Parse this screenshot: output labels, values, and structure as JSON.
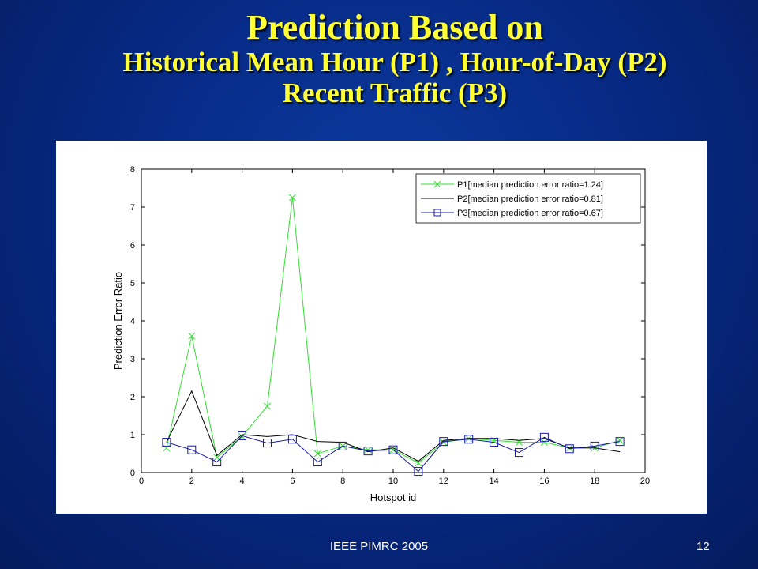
{
  "slide": {
    "title_line1": "Prediction Based on",
    "title_line2": "Historical Mean Hour (P1) , Hour-of-Day (P2)",
    "title_line3": "Recent Traffic (P3)",
    "footer": "IEEE PIMRC 2005",
    "page_number": "12"
  },
  "colors": {
    "background": "#0a2f8f",
    "title": "#ffff33",
    "p1": "#33dd33",
    "p2": "#000000",
    "p3": "#1a1aa6"
  },
  "chart_data": {
    "type": "line",
    "title": "",
    "xlabel": "Hotspot id",
    "ylabel": "Prediction Error Ratio",
    "xlim": [
      0,
      20
    ],
    "ylim": [
      0,
      8
    ],
    "xticks": [
      0,
      2,
      4,
      6,
      8,
      10,
      12,
      14,
      16,
      18,
      20
    ],
    "yticks": [
      0,
      1,
      2,
      3,
      4,
      5,
      6,
      7,
      8
    ],
    "grid": false,
    "legend_position": "top-right",
    "x": [
      1,
      2,
      3,
      4,
      5,
      6,
      7,
      8,
      9,
      10,
      11,
      12,
      13,
      14,
      15,
      16,
      17,
      18,
      19
    ],
    "series": [
      {
        "name": "P1[median prediction error ratio=1.24]",
        "color": "#33dd33",
        "marker": "x",
        "values": [
          0.65,
          3.6,
          0.4,
          0.95,
          1.75,
          7.25,
          0.5,
          0.7,
          0.6,
          0.6,
          0.25,
          0.8,
          0.9,
          0.85,
          0.8,
          0.8,
          0.65,
          0.65,
          0.85
        ]
      },
      {
        "name": "P2[median prediction error ratio=0.81]",
        "color": "#000000",
        "marker": "none",
        "values": [
          0.8,
          2.15,
          0.45,
          1.0,
          0.95,
          1.0,
          0.82,
          0.8,
          0.55,
          0.65,
          0.3,
          0.85,
          0.9,
          0.9,
          0.85,
          0.9,
          0.65,
          0.65,
          0.55
        ]
      },
      {
        "name": "P3[median prediction error ratio=0.67]",
        "color": "#1a1aa6",
        "marker": "square",
        "values": [
          0.8,
          0.6,
          0.28,
          0.97,
          0.78,
          0.88,
          0.28,
          0.7,
          0.57,
          0.6,
          0.03,
          0.82,
          0.88,
          0.8,
          0.53,
          0.93,
          0.63,
          0.7,
          0.82
        ]
      }
    ]
  }
}
